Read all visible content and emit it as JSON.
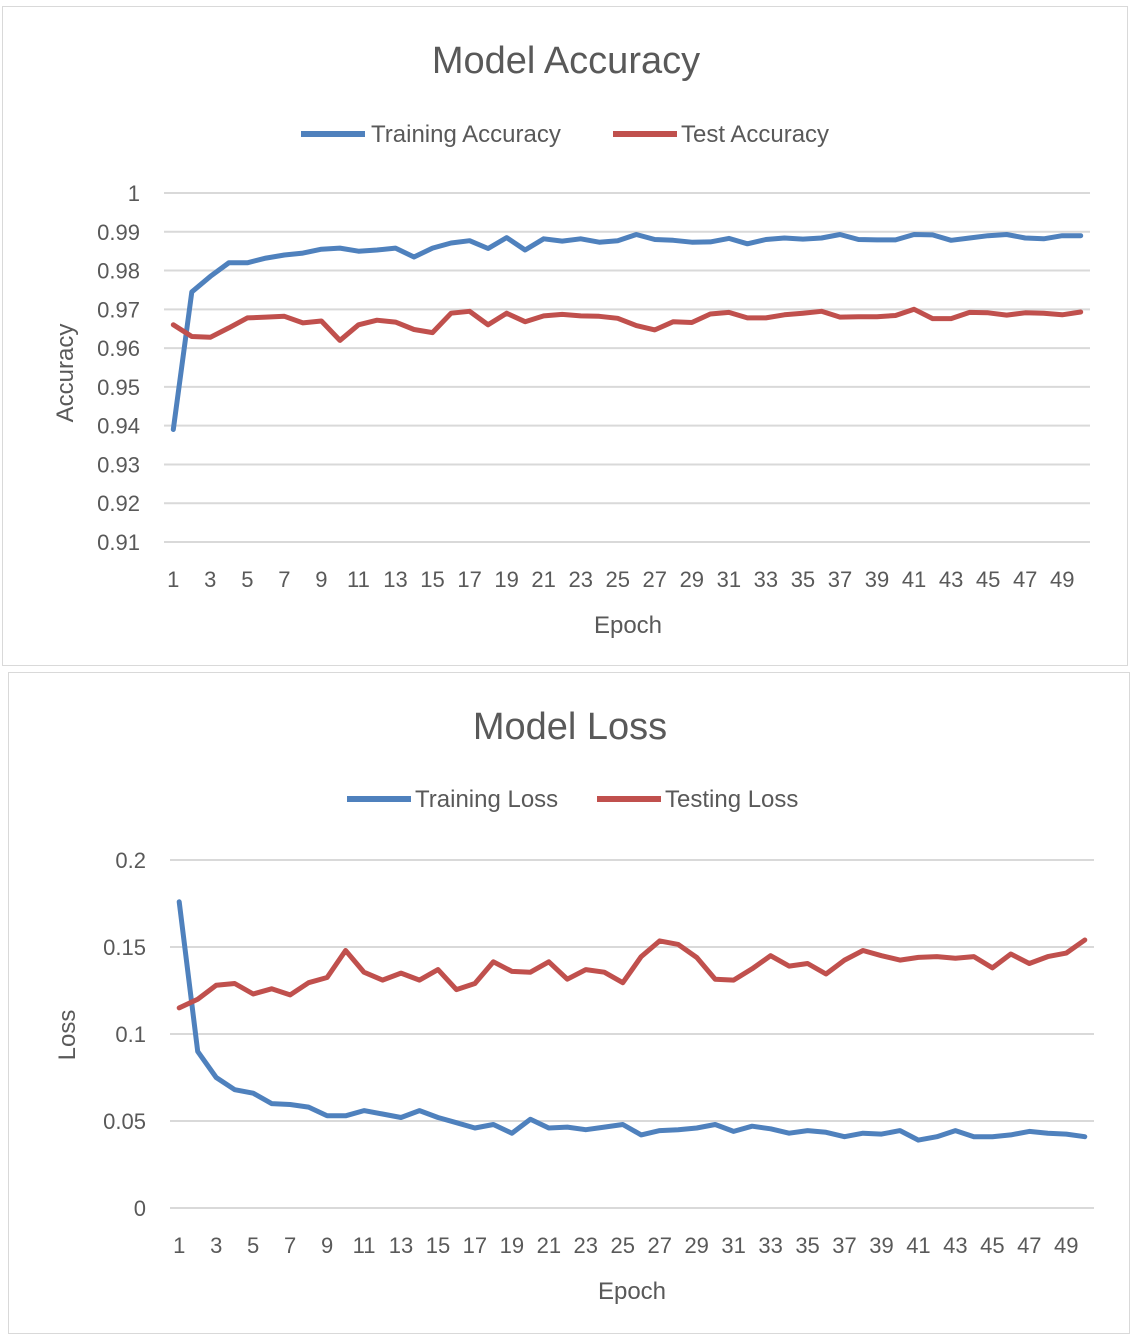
{
  "chart_data": [
    {
      "type": "line",
      "title": "Model Accuracy",
      "xlabel": "Epoch",
      "ylabel": "Accuracy",
      "ylim": [
        0.91,
        1.0
      ],
      "yticks": [
        "1",
        "0.99",
        "0.98",
        "0.97",
        "0.96",
        "0.95",
        "0.94",
        "0.93",
        "0.92",
        "0.91"
      ],
      "xticks": [
        "1",
        "3",
        "5",
        "7",
        "9",
        "11",
        "13",
        "15",
        "17",
        "19",
        "21",
        "23",
        "25",
        "27",
        "29",
        "31",
        "33",
        "35",
        "37",
        "39",
        "41",
        "43",
        "45",
        "47",
        "49"
      ],
      "grid": true,
      "legend_position": "top",
      "x": [
        1,
        2,
        3,
        4,
        5,
        6,
        7,
        8,
        9,
        10,
        11,
        12,
        13,
        14,
        15,
        16,
        17,
        18,
        19,
        20,
        21,
        22,
        23,
        24,
        25,
        26,
        27,
        28,
        29,
        30,
        31,
        32,
        33,
        34,
        35,
        36,
        37,
        38,
        39,
        40,
        41,
        42,
        43,
        44,
        45,
        46,
        47,
        48,
        49,
        50
      ],
      "series": [
        {
          "name": "Training Accuracy",
          "color": "#4f81bd",
          "values": [
            0.939,
            0.9745,
            0.9785,
            0.982,
            0.982,
            0.9832,
            0.984,
            0.9845,
            0.9855,
            0.9858,
            0.985,
            0.9853,
            0.9858,
            0.9835,
            0.9858,
            0.9871,
            0.9877,
            0.9857,
            0.9885,
            0.9853,
            0.9882,
            0.9876,
            0.9882,
            0.9873,
            0.9877,
            0.9893,
            0.988,
            0.9878,
            0.9873,
            0.9874,
            0.9883,
            0.9869,
            0.988,
            0.9884,
            0.9881,
            0.9884,
            0.9893,
            0.988,
            0.9879,
            0.9879,
            0.9893,
            0.9892,
            0.9878,
            0.9884,
            0.989,
            0.9893,
            0.9884,
            0.9882,
            0.989,
            0.989
          ]
        },
        {
          "name": "Test Accuracy",
          "color": "#c0504d",
          "values": [
            0.966,
            0.963,
            0.9628,
            0.9652,
            0.9678,
            0.968,
            0.9682,
            0.9665,
            0.967,
            0.962,
            0.966,
            0.9672,
            0.9667,
            0.9648,
            0.964,
            0.969,
            0.9695,
            0.966,
            0.969,
            0.9668,
            0.9683,
            0.9687,
            0.9683,
            0.9682,
            0.9677,
            0.9658,
            0.9647,
            0.9668,
            0.9666,
            0.9688,
            0.9692,
            0.9678,
            0.9678,
            0.9686,
            0.969,
            0.9695,
            0.968,
            0.9681,
            0.9681,
            0.9684,
            0.97,
            0.9676,
            0.9676,
            0.9692,
            0.9691,
            0.9685,
            0.9691,
            0.969,
            0.9686,
            0.9693
          ]
        }
      ]
    },
    {
      "type": "line",
      "title": "Model Loss",
      "xlabel": "Epoch",
      "ylabel": "Loss",
      "ylim": [
        0,
        0.2
      ],
      "yticks": [
        "0.2",
        "0.15",
        "0.1",
        "0.05",
        "0"
      ],
      "xticks": [
        "1",
        "3",
        "5",
        "7",
        "9",
        "11",
        "13",
        "15",
        "17",
        "19",
        "21",
        "23",
        "25",
        "27",
        "29",
        "31",
        "33",
        "35",
        "37",
        "39",
        "41",
        "43",
        "45",
        "47",
        "49"
      ],
      "grid": true,
      "legend_position": "top",
      "x": [
        1,
        2,
        3,
        4,
        5,
        6,
        7,
        8,
        9,
        10,
        11,
        12,
        13,
        14,
        15,
        16,
        17,
        18,
        19,
        20,
        21,
        22,
        23,
        24,
        25,
        26,
        27,
        28,
        29,
        30,
        31,
        32,
        33,
        34,
        35,
        36,
        37,
        38,
        39,
        40,
        41,
        42,
        43,
        44,
        45,
        46,
        47,
        48,
        49,
        50
      ],
      "series": [
        {
          "name": "Training Loss",
          "color": "#4f81bd",
          "values": [
            0.176,
            0.09,
            0.075,
            0.068,
            0.066,
            0.06,
            0.0595,
            0.058,
            0.053,
            0.053,
            0.056,
            0.054,
            0.052,
            0.056,
            0.052,
            0.049,
            0.046,
            0.048,
            0.043,
            0.051,
            0.046,
            0.0465,
            0.045,
            0.0465,
            0.048,
            0.042,
            0.0445,
            0.045,
            0.046,
            0.048,
            0.044,
            0.047,
            0.0455,
            0.043,
            0.0445,
            0.0435,
            0.041,
            0.043,
            0.0425,
            0.0445,
            0.039,
            0.041,
            0.0445,
            0.041,
            0.041,
            0.042,
            0.044,
            0.043,
            0.0425,
            0.041
          ]
        },
        {
          "name": "Testing Loss",
          "color": "#c0504d",
          "values": [
            0.115,
            0.12,
            0.128,
            0.129,
            0.123,
            0.126,
            0.1225,
            0.1295,
            0.1325,
            0.148,
            0.1355,
            0.131,
            0.135,
            0.131,
            0.137,
            0.1255,
            0.129,
            0.1415,
            0.136,
            0.1355,
            0.1415,
            0.1315,
            0.137,
            0.1355,
            0.1295,
            0.1445,
            0.1535,
            0.1515,
            0.144,
            0.1315,
            0.131,
            0.1375,
            0.145,
            0.139,
            0.1405,
            0.1345,
            0.1425,
            0.148,
            0.145,
            0.1425,
            0.144,
            0.1445,
            0.1435,
            0.1445,
            0.138,
            0.146,
            0.1405,
            0.1445,
            0.1465,
            0.154
          ]
        }
      ]
    }
  ]
}
